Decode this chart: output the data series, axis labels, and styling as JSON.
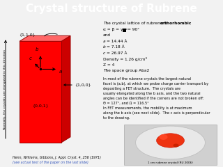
{
  "title": "Crystal structure of Rubrene",
  "title_bg": "#4472C4",
  "title_color": "white",
  "title_fontsize": 11,
  "crystal_color": "#FF0000",
  "crystal_dark": "#CC0000",
  "crystal_top": "#FF6666",
  "crystal_edge": "#990000",
  "bg_color": "#F2F2F2",
  "left_label": "Normally, the crystals are elongated in this direction",
  "miller_top": "{1,1,0}",
  "miller_right": "{1,0,0}",
  "miller_front": "{0,0,1}",
  "ref1": "Henn, Williams, Gibbons, J. Appl. Cryst. 4, 256 (1971)",
  "ref2": "(see actual text of the paper on the last slide)",
  "photo_caption": "1 cm rubrene crystal (RU 2006)"
}
